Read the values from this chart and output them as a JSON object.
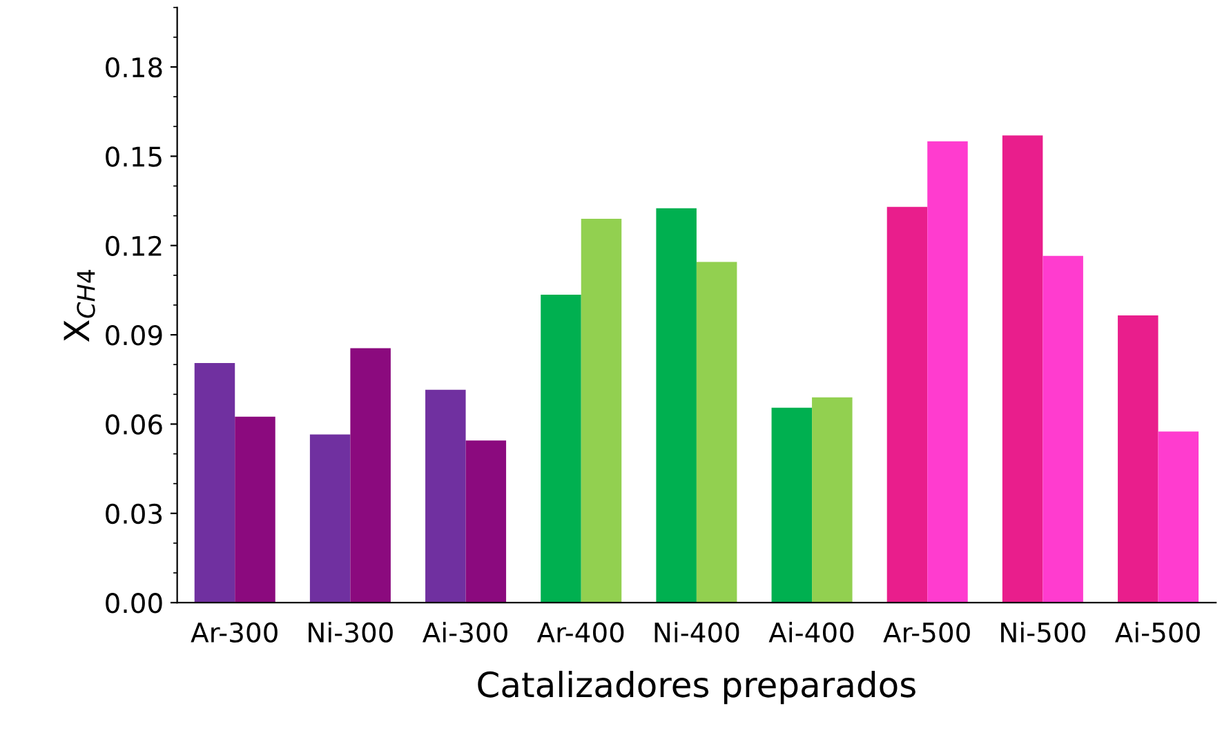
{
  "chart_data": {
    "type": "bar",
    "xlabel": "Catalizadores preparados",
    "ylabel": "X$_{CH4}$",
    "categories": [
      "Ar-300",
      "Ni-300",
      "Ai-300",
      "Ar-400",
      "Ni-400",
      "Ai-400",
      "Ar-500",
      "Ni-500",
      "Ai-500"
    ],
    "series": [
      {
        "colors": [
          "#7030a0",
          "#7030a0",
          "#7030a0",
          "#00b050",
          "#00b050",
          "#00b050",
          "#e91e8c",
          "#e91e8c",
          "#e91e8c"
        ],
        "values": [
          0.0805,
          0.0565,
          0.0715,
          0.1035,
          0.1325,
          0.0655,
          0.133,
          0.157,
          0.0965
        ]
      },
      {
        "colors": [
          "#8b0a7e",
          "#8b0a7e",
          "#8b0a7e",
          "#92d050",
          "#92d050",
          "#92d050",
          "#ff3ccf",
          "#ff3ccf",
          "#ff3ccf"
        ],
        "values": [
          0.0625,
          0.0855,
          0.0545,
          0.129,
          0.1145,
          0.069,
          0.155,
          0.1165,
          0.0575
        ]
      }
    ],
    "ylim": [
      0,
      0.2
    ],
    "yticks": [
      {
        "value": 0,
        "label": "0.00"
      },
      {
        "value": 0.03,
        "label": "0.03"
      },
      {
        "value": 0.06,
        "label": "0.06"
      },
      {
        "value": 0.09,
        "label": "0.09"
      },
      {
        "value": 0.12,
        "label": "0.12"
      },
      {
        "value": 0.15,
        "label": "0.15"
      },
      {
        "value": 0.18,
        "label": "0.18"
      }
    ],
    "grid": false,
    "legend": false
  }
}
